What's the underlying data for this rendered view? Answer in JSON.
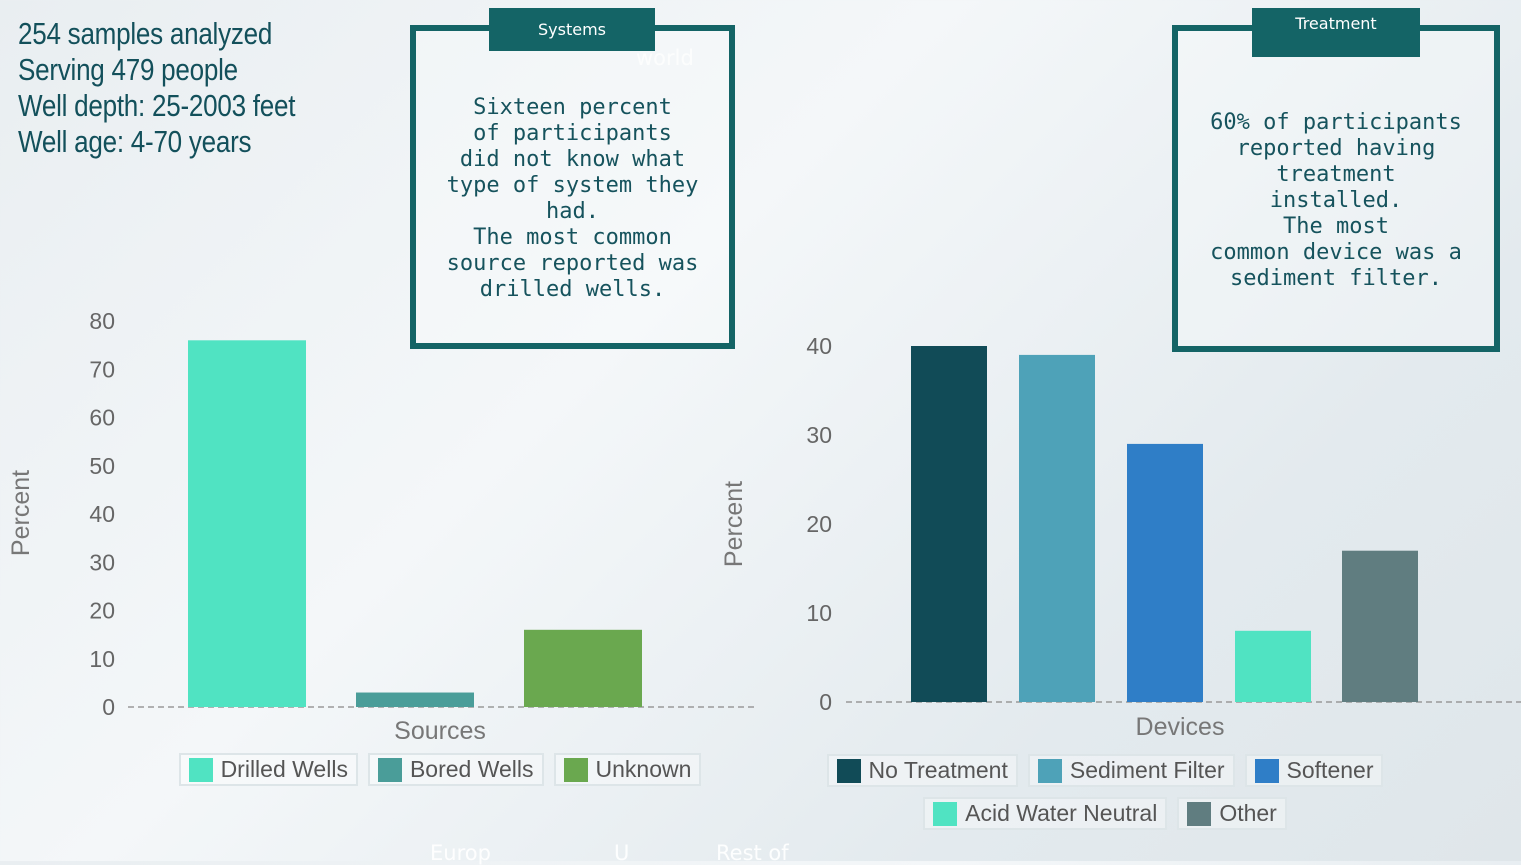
{
  "stats": {
    "line1": "254 samples analyzed",
    "line2": "Serving 479 people",
    "line3": "Well depth: 25-2003 feet",
    "line4": "Well age: 4-70 years"
  },
  "ghost_text": {
    "world": "world",
    "europe": "Europ",
    "u": "U",
    "rest_of": "Rest of"
  },
  "callout_systems": {
    "tab": "Systems",
    "lines": [
      "Sixteen percent",
      "of participants",
      "did not know what",
      "type of system they",
      "had.",
      "The most common",
      "source reported was",
      "drilled wells."
    ]
  },
  "callout_treatment": {
    "tab": "Treatment",
    "lines": [
      "60% of participants",
      "reported having",
      "treatment",
      "installed.",
      "The most",
      "common device was a",
      "sediment filter."
    ]
  },
  "chart_data": [
    {
      "type": "bar",
      "xlabel": "Sources",
      "ylabel": "Percent",
      "ylim": [
        0,
        80
      ],
      "yticks": [
        0,
        10,
        20,
        30,
        40,
        50,
        60,
        70,
        80
      ],
      "grid": false,
      "legend_position": "bottom",
      "categories": [
        "Drilled Wells",
        "Bored Wells",
        "Unknown"
      ],
      "values": [
        76,
        3,
        16
      ],
      "colors": [
        "#50e3c2",
        "#4a9d99",
        "#6aa84f"
      ]
    },
    {
      "type": "bar",
      "xlabel": "Devices",
      "ylabel": "Percent",
      "ylim": [
        0,
        40
      ],
      "yticks": [
        0,
        10,
        20,
        30,
        40
      ],
      "grid": false,
      "legend_position": "bottom",
      "categories": [
        "No Treatment",
        "Sediment Filter",
        "Softener",
        "Acid Water Neutral",
        "Other"
      ],
      "values": [
        40,
        39,
        29,
        8,
        17
      ],
      "colors": [
        "#114b57",
        "#4ea2b8",
        "#2f7ec7",
        "#50e3c2",
        "#607d80"
      ]
    }
  ]
}
